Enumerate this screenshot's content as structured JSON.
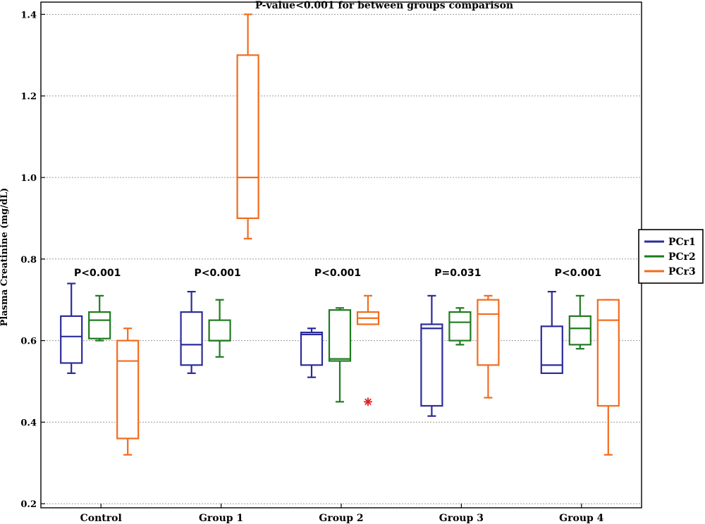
{
  "chart_data": {
    "type": "box",
    "title": "P-value<0.001 for between groups comparison",
    "ylabel": "Plasma Creatinine (mg/dL)",
    "xlabel": "",
    "ylim": [
      0.19,
      1.43
    ],
    "yticks": [
      0.2,
      0.4,
      0.6,
      0.8,
      1.0,
      1.2,
      1.4
    ],
    "ytick_labels": [
      "0.2",
      "0.4",
      "0.6",
      "0.8",
      "1.0",
      "1.2",
      "1.4"
    ],
    "grid": true,
    "legend_position": "right",
    "categories": [
      "Control",
      "Group 1",
      "Group 2",
      "Group 3",
      "Group 4"
    ],
    "group_pvalues": [
      "P<0.001",
      "P<0.001",
      "P<0.001",
      "P=0.031",
      "P<0.001"
    ],
    "series": [
      {
        "name": "PCr1",
        "color": "#2b2b9b",
        "boxes": [
          {
            "min": 0.52,
            "q1": 0.545,
            "median": 0.61,
            "q3": 0.66,
            "max": 0.74
          },
          {
            "min": 0.52,
            "q1": 0.54,
            "median": 0.59,
            "q3": 0.67,
            "max": 0.72
          },
          {
            "min": 0.51,
            "q1": 0.54,
            "median": 0.615,
            "q3": 0.62,
            "max": 0.63
          },
          {
            "min": 0.415,
            "q1": 0.44,
            "median": 0.63,
            "q3": 0.64,
            "max": 0.71
          },
          {
            "min": 0.52,
            "q1": 0.52,
            "median": 0.54,
            "q3": 0.635,
            "max": 0.72
          }
        ]
      },
      {
        "name": "PCr2",
        "color": "#1f7a1f",
        "boxes": [
          {
            "min": 0.6,
            "q1": 0.605,
            "median": 0.65,
            "q3": 0.67,
            "max": 0.71
          },
          {
            "min": 0.56,
            "q1": 0.6,
            "median": 0.6,
            "q3": 0.65,
            "max": 0.7
          },
          {
            "min": 0.45,
            "q1": 0.55,
            "median": 0.555,
            "q3": 0.675,
            "max": 0.68
          },
          {
            "min": 0.59,
            "q1": 0.6,
            "median": 0.645,
            "q3": 0.67,
            "max": 0.68
          },
          {
            "min": 0.58,
            "q1": 0.59,
            "median": 0.63,
            "q3": 0.66,
            "max": 0.71
          }
        ]
      },
      {
        "name": "PCr3",
        "color": "#f26b1d",
        "boxes": [
          {
            "min": 0.32,
            "q1": 0.36,
            "median": 0.55,
            "q3": 0.6,
            "max": 0.63
          },
          {
            "min": 0.85,
            "q1": 0.9,
            "median": 1.0,
            "q3": 1.3,
            "max": 1.4
          },
          {
            "min": 0.64,
            "q1": 0.64,
            "median": 0.655,
            "q3": 0.67,
            "max": 0.71,
            "outliers": [
              0.45
            ]
          },
          {
            "min": 0.46,
            "q1": 0.54,
            "median": 0.665,
            "q3": 0.7,
            "max": 0.71
          },
          {
            "min": 0.32,
            "q1": 0.44,
            "median": 0.65,
            "q3": 0.7,
            "max": 0.7
          }
        ]
      }
    ],
    "outlier_color": "#e02020"
  }
}
